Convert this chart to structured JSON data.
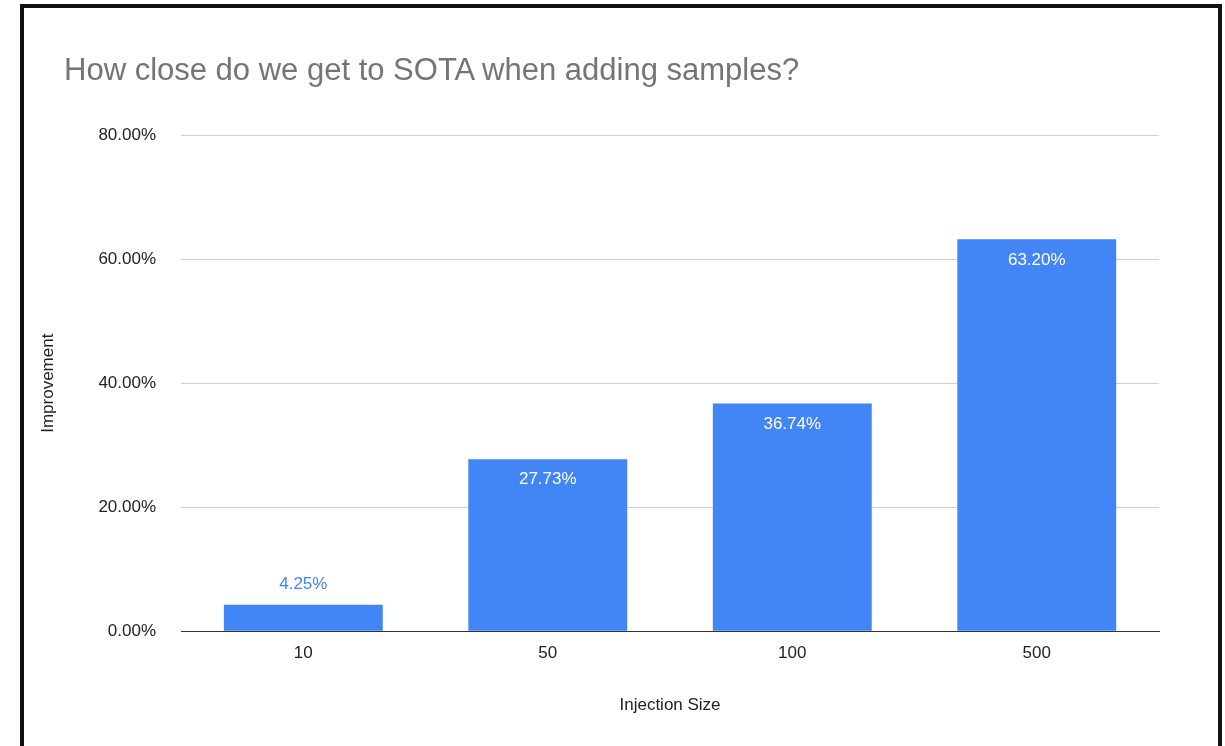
{
  "chart_data": {
    "type": "bar",
    "title": "How close do we get to SOTA when adding samples?",
    "xlabel": "Injection Size",
    "ylabel": "Improvement",
    "categories": [
      "10",
      "50",
      "100",
      "500"
    ],
    "values": [
      4.25,
      27.73,
      36.74,
      63.2
    ],
    "value_labels": [
      "4.25%",
      "27.73%",
      "36.74%",
      "63.20%"
    ],
    "color": "#4285f4",
    "ylim": [
      0,
      80
    ],
    "yticks": [
      {
        "value": 0,
        "label": "0.00%"
      },
      {
        "value": 20,
        "label": "20.00%"
      },
      {
        "value": 40,
        "label": "40.00%"
      },
      {
        "value": 60,
        "label": "60.00%"
      },
      {
        "value": 80,
        "label": "80.00%"
      }
    ],
    "grid": "y"
  }
}
